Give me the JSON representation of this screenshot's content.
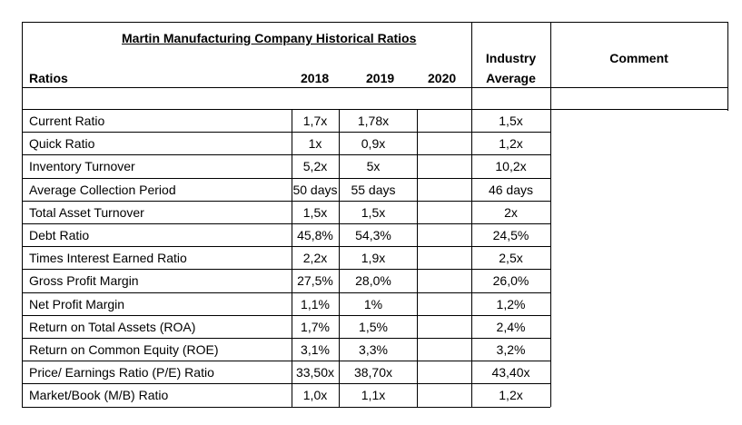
{
  "title": "Martin Manufacturing Company Historical Ratios",
  "headers": {
    "ratios": "Ratios",
    "y2018": "2018",
    "y2019": "2019",
    "y2020": "2020",
    "industry_line1": "Industry",
    "industry_line2": "Average",
    "comment": "Comment"
  },
  "rows": [
    {
      "name": "Current Ratio",
      "y2018": "1,7x",
      "y2019": "1,78x",
      "y2020": "",
      "industry": "1,5x",
      "comment": ""
    },
    {
      "name": "Quick Ratio",
      "y2018": "1x",
      "y2019": "0,9x",
      "y2020": "",
      "industry": "1,2x",
      "comment": ""
    },
    {
      "name": "Inventory Turnover",
      "y2018": "5,2x",
      "y2019": "5x",
      "y2020": "",
      "industry": "10,2x",
      "comment": ""
    },
    {
      "name": "Average Collection Period",
      "y2018": "50 days",
      "y2019": "55 days",
      "y2020": "",
      "industry": "46 days",
      "comment": ""
    },
    {
      "name": "Total Asset Turnover",
      "y2018": "1,5x",
      "y2019": "1,5x",
      "y2020": "",
      "industry": "2x",
      "comment": ""
    },
    {
      "name": "Debt Ratio",
      "y2018": "45,8%",
      "y2019": "54,3%",
      "y2020": "",
      "industry": "24,5%",
      "comment": ""
    },
    {
      "name": "Times Interest Earned Ratio",
      "y2018": "2,2x",
      "y2019": "1,9x",
      "y2020": "",
      "industry": "2,5x",
      "comment": ""
    },
    {
      "name": "Gross Profit Margin",
      "y2018": "27,5%",
      "y2019": "28,0%",
      "y2020": "",
      "industry": "26,0%",
      "comment": ""
    },
    {
      "name": "Net Profit Margin",
      "y2018": "1,1%",
      "y2019": "1%",
      "y2020": "",
      "industry": "1,2%",
      "comment": ""
    },
    {
      "name": "Return on Total Assets (ROA)",
      "y2018": "1,7%",
      "y2019": "1,5%",
      "y2020": "",
      "industry": "2,4%",
      "comment": ""
    },
    {
      "name": "Return on Common Equity (ROE)",
      "y2018": "3,1%",
      "y2019": "3,3%",
      "y2020": "",
      "industry": "3,2%",
      "comment": ""
    },
    {
      "name": "Price/ Earnings Ratio (P/E) Ratio",
      "y2018": "33,50x",
      "y2019": "38,70x",
      "y2020": "",
      "industry": "43,40x",
      "comment": ""
    },
    {
      "name": "Market/Book (M/B) Ratio",
      "y2018": "1,0x",
      "y2019": "1,1x",
      "y2020": "",
      "industry": "1,2x",
      "comment": ""
    }
  ]
}
